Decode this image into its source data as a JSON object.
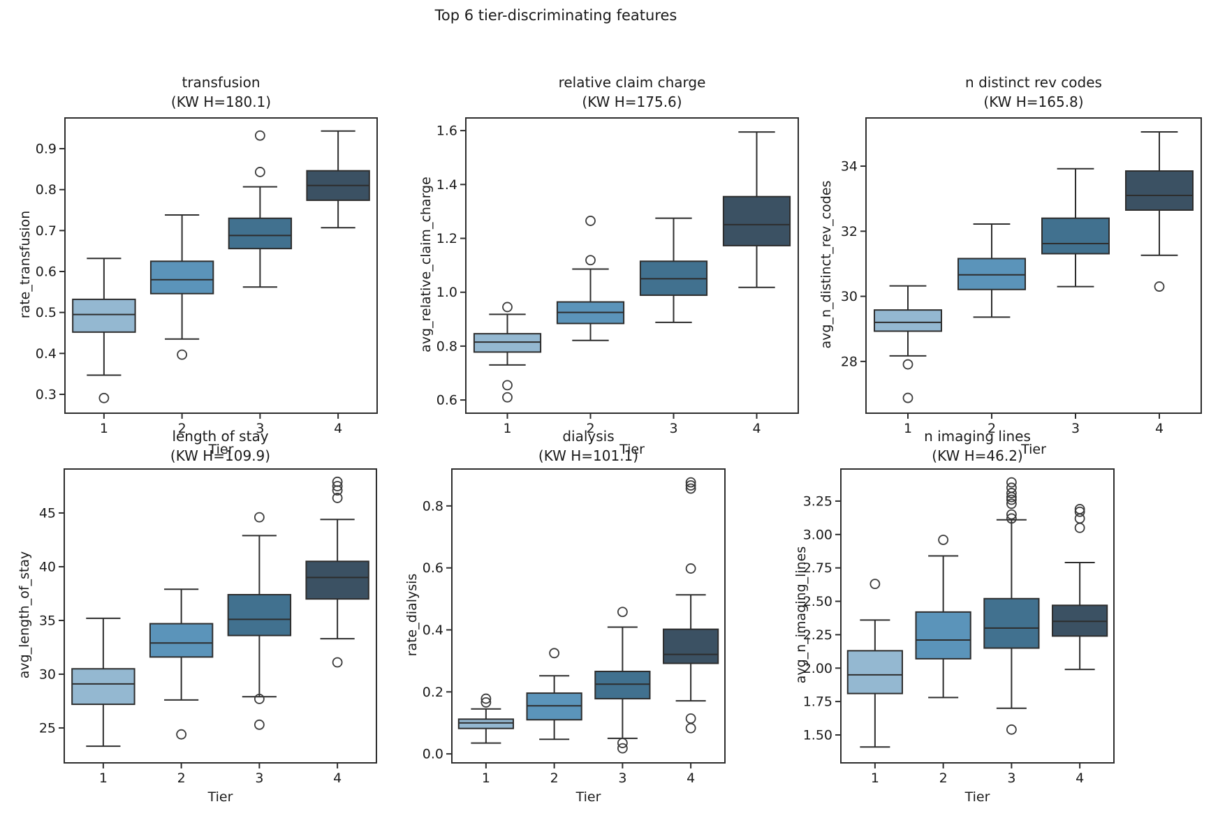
{
  "figure": {
    "title": "Top 6 tier-discriminating features",
    "background_color": "#ffffff",
    "text_color": "#1a1a1a"
  },
  "palette": {
    "tier_colors": [
      "#94b8d1",
      "#5b94ba",
      "#41718f",
      "#3b5163"
    ],
    "box_edge_color": "#2d2d2d",
    "flier_edge_color": "#3a3a3a"
  },
  "chart_data": [
    {
      "type": "box",
      "id": "transfusion",
      "title": "transfusion",
      "subtitle": "(KW H=180.1)",
      "kw_h": 180.1,
      "xlabel": "Tier",
      "ylabel": "rate_transfusion",
      "categories": [
        "1",
        "2",
        "3",
        "4"
      ],
      "ylim": [
        0.254,
        0.975
      ],
      "ytick_values": [
        0.3,
        0.4,
        0.5,
        0.6,
        0.7,
        0.8,
        0.9
      ],
      "ytick_labels": [
        "0.3",
        "0.4",
        "0.5",
        "0.6",
        "0.7",
        "0.8",
        "0.9"
      ],
      "boxes": [
        {
          "tier": "1",
          "whislo": 0.347,
          "q1": 0.452,
          "med": 0.495,
          "q3": 0.532,
          "whishi": 0.632,
          "fliers": [
            0.291
          ]
        },
        {
          "tier": "2",
          "whislo": 0.435,
          "q1": 0.546,
          "med": 0.58,
          "q3": 0.625,
          "whishi": 0.738,
          "fliers": [
            0.397
          ]
        },
        {
          "tier": "3",
          "whislo": 0.562,
          "q1": 0.656,
          "med": 0.688,
          "q3": 0.73,
          "whishi": 0.807,
          "fliers": [
            0.932,
            0.843
          ]
        },
        {
          "tier": "4",
          "whislo": 0.707,
          "q1": 0.774,
          "med": 0.81,
          "q3": 0.846,
          "whishi": 0.943,
          "fliers": []
        }
      ]
    },
    {
      "type": "box",
      "id": "relative_claim_charge",
      "title": "relative claim charge",
      "subtitle": "(KW H=175.6)",
      "kw_h": 175.6,
      "xlabel": "Tier",
      "ylabel": "avg_relative_claim_charge",
      "categories": [
        "1",
        "2",
        "3",
        "4"
      ],
      "ylim": [
        0.551,
        1.647
      ],
      "ytick_values": [
        0.6,
        0.8,
        1.0,
        1.2,
        1.4,
        1.6
      ],
      "ytick_labels": [
        "0.6",
        "0.8",
        "1.0",
        "1.2",
        "1.4",
        "1.6"
      ],
      "boxes": [
        {
          "tier": "1",
          "whislo": 0.73,
          "q1": 0.778,
          "med": 0.815,
          "q3": 0.846,
          "whishi": 0.918,
          "fliers": [
            0.945,
            0.655,
            0.61
          ]
        },
        {
          "tier": "2",
          "whislo": 0.821,
          "q1": 0.884,
          "med": 0.925,
          "q3": 0.964,
          "whishi": 1.086,
          "fliers": [
            1.265,
            1.119
          ]
        },
        {
          "tier": "3",
          "whislo": 0.888,
          "q1": 0.989,
          "med": 1.05,
          "q3": 1.115,
          "whishi": 1.275,
          "fliers": []
        },
        {
          "tier": "4",
          "whislo": 1.018,
          "q1": 1.173,
          "med": 1.251,
          "q3": 1.355,
          "whishi": 1.595,
          "fliers": []
        }
      ]
    },
    {
      "type": "box",
      "id": "n_distinct_rev_codes",
      "title": "n distinct rev codes",
      "subtitle": "(KW H=165.8)",
      "kw_h": 165.8,
      "xlabel": "Tier",
      "ylabel": "avg_n_distinct_rev_codes",
      "categories": [
        "1",
        "2",
        "3",
        "4"
      ],
      "ylim": [
        26.41,
        35.48
      ],
      "ytick_values": [
        28,
        30,
        32,
        34
      ],
      "ytick_labels": [
        "28",
        "30",
        "32",
        "34"
      ],
      "boxes": [
        {
          "tier": "1",
          "whislo": 28.17,
          "q1": 28.93,
          "med": 29.2,
          "q3": 29.58,
          "whishi": 30.32,
          "fliers": [
            27.91,
            26.88
          ]
        },
        {
          "tier": "2",
          "whislo": 29.36,
          "q1": 30.21,
          "med": 30.66,
          "q3": 31.16,
          "whishi": 32.22,
          "fliers": []
        },
        {
          "tier": "3",
          "whislo": 30.3,
          "q1": 31.31,
          "med": 31.62,
          "q3": 32.4,
          "whishi": 33.92,
          "fliers": []
        },
        {
          "tier": "4",
          "whislo": 31.26,
          "q1": 32.65,
          "med": 33.1,
          "q3": 33.85,
          "whishi": 35.05,
          "fliers": [
            30.3
          ]
        }
      ]
    },
    {
      "type": "box",
      "id": "length_of_stay",
      "title": "length of stay",
      "subtitle": "(KW H=109.9)",
      "kw_h": 109.9,
      "xlabel": "Tier",
      "ylabel": "avg_length_of_stay",
      "categories": [
        "1",
        "2",
        "3",
        "4"
      ],
      "ylim": [
        21.75,
        49.09
      ],
      "ytick_values": [
        25,
        30,
        35,
        40,
        45
      ],
      "ytick_labels": [
        "25",
        "30",
        "35",
        "40",
        "45"
      ],
      "boxes": [
        {
          "tier": "1",
          "whislo": 23.3,
          "q1": 27.2,
          "med": 29.1,
          "q3": 30.5,
          "whishi": 35.2,
          "fliers": []
        },
        {
          "tier": "2",
          "whislo": 27.6,
          "q1": 31.6,
          "med": 32.9,
          "q3": 34.7,
          "whishi": 37.9,
          "fliers": [
            24.4
          ]
        },
        {
          "tier": "3",
          "whislo": 27.9,
          "q1": 33.6,
          "med": 35.1,
          "q3": 37.4,
          "whishi": 42.9,
          "fliers": [
            44.6,
            27.7,
            25.3
          ]
        },
        {
          "tier": "4",
          "whislo": 33.3,
          "q1": 37.0,
          "med": 39.0,
          "q3": 40.5,
          "whishi": 44.4,
          "fliers": [
            47.9,
            47.5,
            47.1,
            46.4,
            31.1
          ]
        }
      ]
    },
    {
      "type": "box",
      "id": "dialysis",
      "title": "dialysis",
      "subtitle": "(KW H=101.1)",
      "kw_h": 101.1,
      "xlabel": "Tier",
      "ylabel": "rate_dialysis",
      "categories": [
        "1",
        "2",
        "3",
        "4"
      ],
      "ylim": [
        -0.029,
        0.919
      ],
      "ytick_values": [
        0.0,
        0.2,
        0.4,
        0.6,
        0.8
      ],
      "ytick_labels": [
        "0.0",
        "0.2",
        "0.4",
        "0.6",
        "0.8"
      ],
      "boxes": [
        {
          "tier": "1",
          "whislo": 0.035,
          "q1": 0.082,
          "med": 0.1,
          "q3": 0.112,
          "whishi": 0.145,
          "fliers": [
            0.178,
            0.166
          ]
        },
        {
          "tier": "2",
          "whislo": 0.047,
          "q1": 0.11,
          "med": 0.155,
          "q3": 0.196,
          "whishi": 0.252,
          "fliers": [
            0.325
          ]
        },
        {
          "tier": "3",
          "whislo": 0.05,
          "q1": 0.178,
          "med": 0.225,
          "q3": 0.266,
          "whishi": 0.409,
          "fliers": [
            0.458,
            0.035,
            0.018
          ]
        },
        {
          "tier": "4",
          "whislo": 0.171,
          "q1": 0.292,
          "med": 0.321,
          "q3": 0.402,
          "whishi": 0.513,
          "fliers": [
            0.876,
            0.866,
            0.856,
            0.598,
            0.114,
            0.083
          ]
        }
      ]
    },
    {
      "type": "box",
      "id": "n_imaging_lines",
      "title": "n imaging lines",
      "subtitle": "(KW H=46.2)",
      "kw_h": 46.2,
      "xlabel": "Tier",
      "ylabel": "avg_n_imaging_lines",
      "categories": [
        "1",
        "2",
        "3",
        "4"
      ],
      "ylim": [
        1.291,
        3.49
      ],
      "ytick_values": [
        1.5,
        1.75,
        2.0,
        2.25,
        2.5,
        2.75,
        3.0,
        3.25
      ],
      "ytick_labels": [
        "1.50",
        "1.75",
        "2.00",
        "2.25",
        "2.50",
        "2.75",
        "3.00",
        "3.25"
      ],
      "boxes": [
        {
          "tier": "1",
          "whislo": 1.41,
          "q1": 1.81,
          "med": 1.95,
          "q3": 2.13,
          "whishi": 2.36,
          "fliers": [
            2.63
          ]
        },
        {
          "tier": "2",
          "whislo": 1.78,
          "q1": 2.07,
          "med": 2.21,
          "q3": 2.42,
          "whishi": 2.84,
          "fliers": [
            2.96
          ]
        },
        {
          "tier": "3",
          "whislo": 1.7,
          "q1": 2.15,
          "med": 2.3,
          "q3": 2.52,
          "whishi": 3.11,
          "fliers": [
            3.39,
            3.35,
            3.31,
            3.28,
            3.26,
            3.23,
            3.15,
            3.12,
            1.54
          ]
        },
        {
          "tier": "4",
          "whislo": 1.99,
          "q1": 2.24,
          "med": 2.35,
          "q3": 2.47,
          "whishi": 2.79,
          "fliers": [
            3.19,
            3.17,
            3.12,
            3.05
          ]
        }
      ]
    }
  ]
}
